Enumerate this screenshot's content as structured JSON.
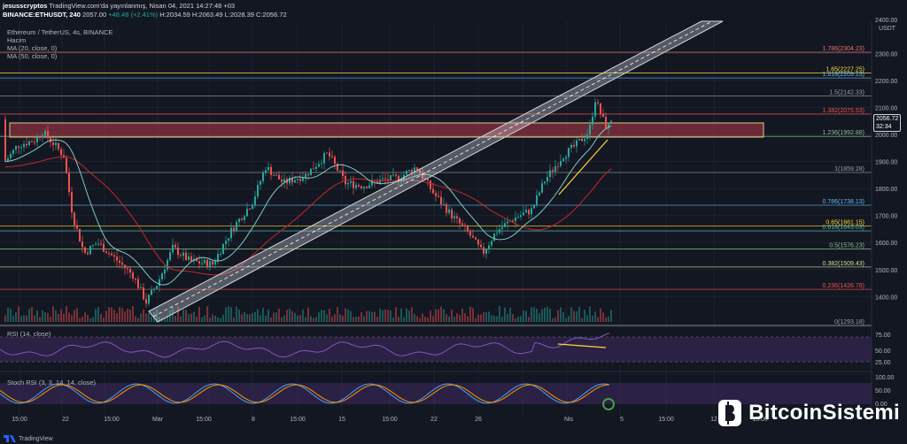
{
  "header": {
    "line1_user": "jesusscryptos",
    "line1_rest": "TradingView.com'da yayınlanmış, Nisan 04, 2021 14:27:48 +03",
    "line2_symbol": "BINANCE:ETHUSDT, 240",
    "line2_price": "2057.00",
    "line2_change": "+48.48 (+2.41%)",
    "line2_ohlc": "H:2034.59 H:2063.49 L:2028.39 C:2056.72"
  },
  "legend": {
    "title": "Ethereum / TetherUS, 4s, BINANCE",
    "volume": "Hacim",
    "ma20": "MA (20, close, 0)",
    "ma50": "MA (50, close, 0)"
  },
  "price_axis": {
    "currency": "USDT",
    "top_value": "2400.00",
    "ticks": [
      "2300.00",
      "2200.00",
      "2100.00",
      "2000.00",
      "1900.00",
      "1800.00",
      "1700.00",
      "1600.00",
      "1500.00",
      "1400.00"
    ],
    "current_price": "2056.72",
    "countdown": "32:34"
  },
  "fib_levels": [
    {
      "label": "1.786(2304.23)",
      "value": 2304.23,
      "color": "#e57373"
    },
    {
      "label": "1.65(2227.25)",
      "value": 2227.25,
      "color": "#fdd835"
    },
    {
      "label": "1.618(2209.13)",
      "value": 2209.13,
      "color": "#64b5f6"
    },
    {
      "label": "1.5(2142.33)",
      "value": 2142.33,
      "color": "#9e9e9e"
    },
    {
      "label": "1.382(2075.53)",
      "value": 2075.53,
      "color": "#ef5350"
    },
    {
      "label": "1.236(1992.88)",
      "value": 1992.88,
      "color": "#81c784"
    },
    {
      "label": "1(1859.28)",
      "value": 1859.28,
      "color": "#9e9e9e"
    },
    {
      "label": "0.786(1738.13)",
      "value": 1738.13,
      "color": "#64b5f6"
    },
    {
      "label": "0.65(1661.15)",
      "value": 1661.15,
      "color": "#fdd835"
    },
    {
      "label": "0.618(1643.03)",
      "value": 1643.03,
      "color": "#4db6ac"
    },
    {
      "label": "0.5(1576.23)",
      "value": 1576.23,
      "color": "#81c784"
    },
    {
      "label": "0.382(1509.43)",
      "value": 1509.43,
      "color": "#c5e1a5"
    },
    {
      "label": "0.236(1426.78)",
      "value": 1426.78,
      "color": "#ef5350"
    },
    {
      "label": "0(1293.18)",
      "value": 1293.18,
      "color": "#9e9e9e"
    }
  ],
  "rsi": {
    "title": "RSI (14, close)",
    "ticks": [
      "75.00",
      "50.00",
      "25.00"
    ]
  },
  "stoch": {
    "title": "Stoch RSI (3, 3, 14, 14, close)",
    "ticks": [
      "100.00",
      "50.00",
      "0.00"
    ]
  },
  "time_axis": [
    "15:00",
    "22",
    "15:00",
    "Mar",
    "15:00",
    "8",
    "15:00",
    "15",
    "15:00",
    "22",
    "26",
    "Nis",
    "5",
    "15:00",
    "12",
    "15:00"
  ],
  "footer": {
    "brand": "TradingView"
  },
  "watermark": {
    "text": "BitcoinSistemi"
  },
  "colors": {
    "background": "#131722",
    "up": "#26a69a",
    "down": "#ef5350",
    "ma20": "#80cbc4",
    "ma50": "#c62828",
    "rsi": "#7e57c2",
    "channel": "#d1d4dc"
  }
}
